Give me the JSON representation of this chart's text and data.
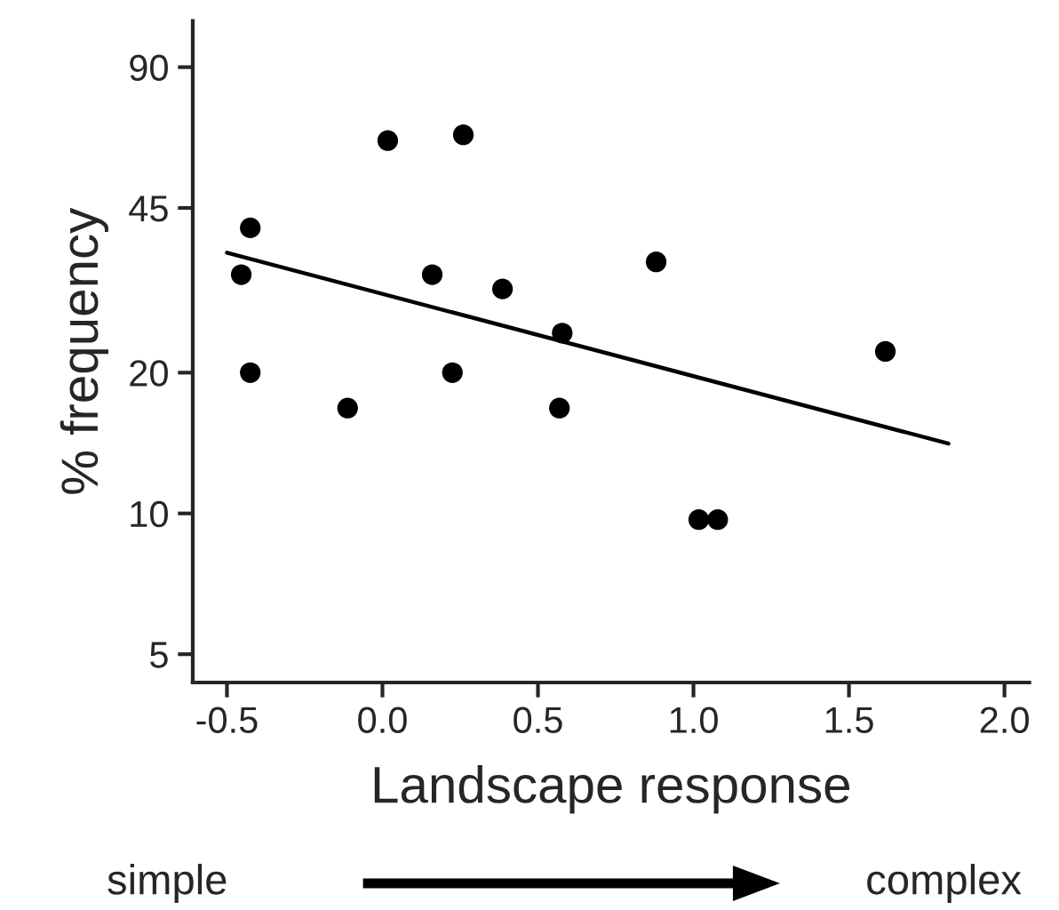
{
  "chart_data": {
    "type": "scatter",
    "xlabel": "Landscape response",
    "ylabel": "% frequency",
    "series": [
      {
        "color": "#000000",
        "marker": "circle",
        "x": [
          -0.454,
          -0.425,
          -0.425,
          -0.112,
          0.017,
          0.26,
          0.16,
          0.386,
          0.225,
          0.578,
          0.569,
          0.88,
          1.017,
          1.078,
          1.617
        ],
        "values": [
          32.4,
          40.8,
          20,
          16.8,
          62.7,
          64.5,
          32.4,
          30.2,
          20,
          24.3,
          16.8,
          34.5,
          9.7,
          9.7,
          22.2
        ]
      },
      {
        "type": "line",
        "color": "#000000",
        "line_style": "solid",
        "x": [
          -0.5,
          1.82
        ],
        "values": [
          36.1,
          14.1
        ]
      }
    ],
    "xlim": [
      -0.61,
      2.08
    ],
    "xticks": [
      -0.5,
      {
        "value": 0.0,
        "label": "0.0"
      },
      0.5,
      {
        "value": 1.0,
        "label": "1.0"
      },
      1.5,
      {
        "value": 2.0,
        "label": "2.0"
      }
    ],
    "log": "y",
    "ylim": [
      4.35,
      113
    ],
    "yticks": [
      5,
      10,
      20,
      45,
      90
    ],
    "grid": false,
    "legend": false,
    "annotations": [
      "simple",
      "complex"
    ]
  }
}
